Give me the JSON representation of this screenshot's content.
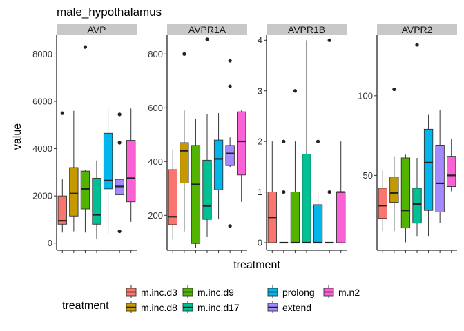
{
  "chart_data": {
    "type": "box",
    "title": "male_hypothalamus",
    "xlabel": "treatment",
    "ylabel": "value",
    "treatments": [
      "m.inc.d3",
      "m.inc.d8",
      "m.inc.d9",
      "m.inc.d17",
      "prolong",
      "extend",
      "m.n2"
    ],
    "colors": {
      "m.inc.d3": "#F8766D",
      "m.inc.d8": "#C49A00",
      "m.inc.d9": "#53B400",
      "m.inc.d17": "#00C094",
      "prolong": "#00B6EB",
      "extend": "#A58AFF",
      "m.n2": "#FB61D7"
    },
    "legend": {
      "title": "treatment",
      "position": "bottom",
      "items": [
        "m.inc.d3",
        "m.inc.d8",
        "m.inc.d9",
        "m.inc.d17",
        "prolong",
        "extend",
        "m.n2"
      ]
    },
    "panels": [
      {
        "name": "AVP",
        "ylim": [
          -300,
          8800
        ],
        "yticks": [
          0,
          2000,
          4000,
          6000,
          8000
        ],
        "boxes": [
          {
            "treatment": "m.inc.d3",
            "lower": 450,
            "q1": 800,
            "median": 950,
            "q3": 2000,
            "upper": 2700,
            "outliers": [
              5500
            ]
          },
          {
            "treatment": "m.inc.d8",
            "lower": 500,
            "q1": 1150,
            "median": 2100,
            "q3": 3200,
            "upper": 5600,
            "outliers": []
          },
          {
            "treatment": "m.inc.d9",
            "lower": 450,
            "q1": 1450,
            "median": 2300,
            "q3": 3050,
            "upper": 3100,
            "outliers": [
              8300
            ]
          },
          {
            "treatment": "m.inc.d17",
            "lower": 200,
            "q1": 800,
            "median": 1200,
            "q3": 2750,
            "upper": 3500,
            "outliers": []
          },
          {
            "treatment": "prolong",
            "lower": 400,
            "q1": 2300,
            "median": 2650,
            "q3": 4650,
            "upper": 5700,
            "outliers": []
          },
          {
            "treatment": "extend",
            "lower": 2050,
            "q1": 2050,
            "median": 2400,
            "q3": 2700,
            "upper": 2700,
            "outliers": [
              5450,
              4250,
              500
            ]
          },
          {
            "treatment": "m.n2",
            "lower": 900,
            "q1": 1750,
            "median": 2750,
            "q3": 4350,
            "upper": 5700,
            "outliers": []
          }
        ]
      },
      {
        "name": "AVPR1A",
        "ylim": [
          70,
          870
        ],
        "yticks": [
          200,
          400,
          600,
          800
        ],
        "boxes": [
          {
            "treatment": "m.inc.d3",
            "lower": 110,
            "q1": 165,
            "median": 195,
            "q3": 370,
            "upper": 445,
            "outliers": []
          },
          {
            "treatment": "m.inc.d8",
            "lower": 140,
            "q1": 320,
            "median": 440,
            "q3": 470,
            "upper": 590,
            "outliers": [
              800
            ]
          },
          {
            "treatment": "m.inc.d9",
            "lower": 80,
            "q1": 95,
            "median": 315,
            "q3": 460,
            "upper": 560,
            "outliers": []
          },
          {
            "treatment": "m.inc.d17",
            "lower": 120,
            "q1": 185,
            "median": 235,
            "q3": 405,
            "upper": 575,
            "outliers": [
              855
            ]
          },
          {
            "treatment": "prolong",
            "lower": 185,
            "q1": 295,
            "median": 410,
            "q3": 480,
            "upper": 580,
            "outliers": []
          },
          {
            "treatment": "extend",
            "lower": 380,
            "q1": 385,
            "median": 430,
            "q3": 460,
            "upper": 490,
            "outliers": [
              775,
              680,
              160
            ]
          },
          {
            "treatment": "m.n2",
            "lower": 250,
            "q1": 350,
            "median": 475,
            "q3": 585,
            "upper": 590,
            "outliers": []
          }
        ]
      },
      {
        "name": "AVPR1B",
        "ylim": [
          -0.15,
          4.1
        ],
        "yticks": [
          0,
          1,
          2,
          3,
          4
        ],
        "boxes": [
          {
            "treatment": "m.inc.d3",
            "lower": 0,
            "q1": 0,
            "median": 0.5,
            "q3": 1,
            "upper": 2,
            "outliers": []
          },
          {
            "treatment": "m.inc.d8",
            "lower": 0,
            "q1": 0,
            "median": 0,
            "q3": 0,
            "upper": 0,
            "outliers": [
              2,
              1
            ]
          },
          {
            "treatment": "m.inc.d9",
            "lower": 0,
            "q1": 0,
            "median": 0,
            "q3": 1,
            "upper": 2,
            "outliers": [
              3
            ]
          },
          {
            "treatment": "m.inc.d17",
            "lower": 0,
            "q1": 0,
            "median": 0,
            "q3": 1.75,
            "upper": 4,
            "outliers": []
          },
          {
            "treatment": "prolong",
            "lower": 0,
            "q1": 0,
            "median": 0,
            "q3": 0.75,
            "upper": 1,
            "outliers": [
              2
            ]
          },
          {
            "treatment": "extend",
            "lower": 0,
            "q1": 0,
            "median": 0,
            "q3": 0,
            "upper": 0,
            "outliers": [
              4,
              1
            ]
          },
          {
            "treatment": "m.n2",
            "lower": 0,
            "q1": 0,
            "median": 1,
            "q3": 1,
            "upper": 2,
            "outliers": []
          }
        ]
      },
      {
        "name": "AVPR2",
        "ylim": [
          3,
          138
        ],
        "yticks": [
          50,
          100
        ],
        "boxes": [
          {
            "treatment": "m.inc.d3",
            "lower": 15,
            "q1": 23,
            "median": 31,
            "q3": 42,
            "upper": 53,
            "outliers": []
          },
          {
            "treatment": "m.inc.d8",
            "lower": 15,
            "q1": 33,
            "median": 39,
            "q3": 49,
            "upper": 62,
            "outliers": [
              104
            ]
          },
          {
            "treatment": "m.inc.d9",
            "lower": 8,
            "q1": 17,
            "median": 28,
            "q3": 61,
            "upper": 63,
            "outliers": []
          },
          {
            "treatment": "m.inc.d17",
            "lower": 12,
            "q1": 20,
            "median": 32,
            "q3": 42,
            "upper": 61,
            "outliers": [
              132
            ]
          },
          {
            "treatment": "prolong",
            "lower": 12,
            "q1": 28,
            "median": 58,
            "q3": 79,
            "upper": 88,
            "outliers": []
          },
          {
            "treatment": "extend",
            "lower": 20,
            "q1": 27,
            "median": 45,
            "q3": 69,
            "upper": 91,
            "outliers": []
          },
          {
            "treatment": "m.n2",
            "lower": 40,
            "q1": 43,
            "median": 50,
            "q3": 62,
            "upper": 73,
            "outliers": []
          }
        ]
      }
    ]
  }
}
